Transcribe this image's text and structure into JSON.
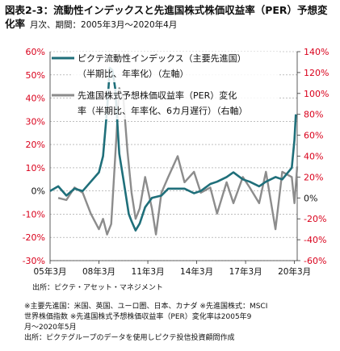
{
  "header": {
    "title": "図表2-3：流動性インデックスと先進国株式株価収益率（PER）予想変化率",
    "subtitle": "月次、期間：2005年3月～2020年4月"
  },
  "source_line": "出所：ピクテ・アセット・マネジメント",
  "notes": [
    "※主要先進国：米国、英国、ユーロ圏、日本、カナダ ※先進国株式：MSCI",
    "世界株価指数 ※先進国株式予想株価収益率（PER）変化率は2005年9",
    "月～2020年5月",
    "出所：ピクテグループのデータを使用しピクテ投信投資顧問作成"
  ],
  "colors": {
    "liquidity": "#1f6f7a",
    "per": "#8c8c8c",
    "left_axis": "#d9001b",
    "right_axis": "#d9001b"
  },
  "chart_data": {
    "type": "line",
    "x_tick_labels": [
      "05年3月",
      "08年3月",
      "11年3月",
      "14年3月",
      "17年3月",
      "20年3月"
    ],
    "x_range": [
      "2005-03",
      "2020-05"
    ],
    "y_left": {
      "ylim": [
        -30,
        60
      ],
      "ticks": [
        -30,
        -20,
        -10,
        0,
        10,
        20,
        30,
        40,
        50,
        60
      ],
      "unit": "%"
    },
    "y_right": {
      "ylim": [
        -60,
        140
      ],
      "ticks": [
        -60,
        -40,
        -20,
        0,
        20,
        40,
        60,
        80,
        100,
        120,
        140
      ],
      "unit": "%"
    },
    "legend": [
      {
        "line1": "ピクテ流動性インデックス（主要先進国）",
        "line2": "（半期比、年率化）（左軸）"
      },
      {
        "line1": "先進国株式予想株価収益率（PER）変化",
        "line2": "率（半期比、年率化、6カ月遅行）（右軸）"
      }
    ],
    "series": [
      {
        "name": "ピクテ流動性インデックス（主要先進国）（半期比、年率化）（左軸）",
        "axis": "left",
        "points": [
          [
            "2005-03",
            0
          ],
          [
            "2005-09",
            2
          ],
          [
            "2006-03",
            -2
          ],
          [
            "2006-09",
            1
          ],
          [
            "2007-03",
            0
          ],
          [
            "2007-09",
            4
          ],
          [
            "2008-03",
            8
          ],
          [
            "2008-06",
            15
          ],
          [
            "2008-09",
            35
          ],
          [
            "2008-11",
            53
          ],
          [
            "2009-01",
            52
          ],
          [
            "2009-03",
            44
          ],
          [
            "2009-06",
            16
          ],
          [
            "2009-09",
            5
          ],
          [
            "2010-01",
            -10
          ],
          [
            "2010-03",
            -13
          ],
          [
            "2010-06",
            -17
          ],
          [
            "2010-09",
            -14
          ],
          [
            "2011-01",
            -7
          ],
          [
            "2011-06",
            -3
          ],
          [
            "2012-01",
            -2
          ],
          [
            "2012-06",
            1
          ],
          [
            "2013-01",
            1
          ],
          [
            "2013-06",
            1
          ],
          [
            "2014-01",
            -1
          ],
          [
            "2014-06",
            0
          ],
          [
            "2015-01",
            3
          ],
          [
            "2015-06",
            4
          ],
          [
            "2016-01",
            6
          ],
          [
            "2016-06",
            8
          ],
          [
            "2017-01",
            5
          ],
          [
            "2017-06",
            4
          ],
          [
            "2018-01",
            2
          ],
          [
            "2018-06",
            4
          ],
          [
            "2019-01",
            6
          ],
          [
            "2019-06",
            5
          ],
          [
            "2020-01",
            10
          ],
          [
            "2020-03",
            22
          ],
          [
            "2020-04",
            33
          ]
        ]
      },
      {
        "name": "先進国株式予想株価収益率（PER）変化率（半期比、年率化、6カ月遅行）（右軸）",
        "axis": "right",
        "points": [
          [
            "2005-09",
            0
          ],
          [
            "2006-03",
            -2
          ],
          [
            "2006-09",
            10
          ],
          [
            "2007-03",
            5
          ],
          [
            "2007-09",
            -15
          ],
          [
            "2008-03",
            -30
          ],
          [
            "2008-06",
            -20
          ],
          [
            "2008-09",
            -35
          ],
          [
            "2008-12",
            -25
          ],
          [
            "2009-03",
            40
          ],
          [
            "2009-06",
            105
          ],
          [
            "2009-09",
            95
          ],
          [
            "2009-12",
            45
          ],
          [
            "2010-03",
            5
          ],
          [
            "2010-06",
            -20
          ],
          [
            "2010-09",
            -10
          ],
          [
            "2011-01",
            20
          ],
          [
            "2011-06",
            -10
          ],
          [
            "2011-09",
            -35
          ],
          [
            "2012-01",
            5
          ],
          [
            "2012-06",
            20
          ],
          [
            "2013-01",
            40
          ],
          [
            "2013-06",
            15
          ],
          [
            "2014-01",
            25
          ],
          [
            "2014-06",
            5
          ],
          [
            "2015-01",
            10
          ],
          [
            "2015-06",
            -15
          ],
          [
            "2016-01",
            15
          ],
          [
            "2016-06",
            -5
          ],
          [
            "2017-01",
            20
          ],
          [
            "2017-06",
            10
          ],
          [
            "2018-01",
            -5
          ],
          [
            "2018-06",
            25
          ],
          [
            "2019-01",
            -30
          ],
          [
            "2019-06",
            25
          ],
          [
            "2020-01",
            20
          ],
          [
            "2020-03",
            -5
          ],
          [
            "2020-05",
            30
          ]
        ]
      }
    ]
  }
}
